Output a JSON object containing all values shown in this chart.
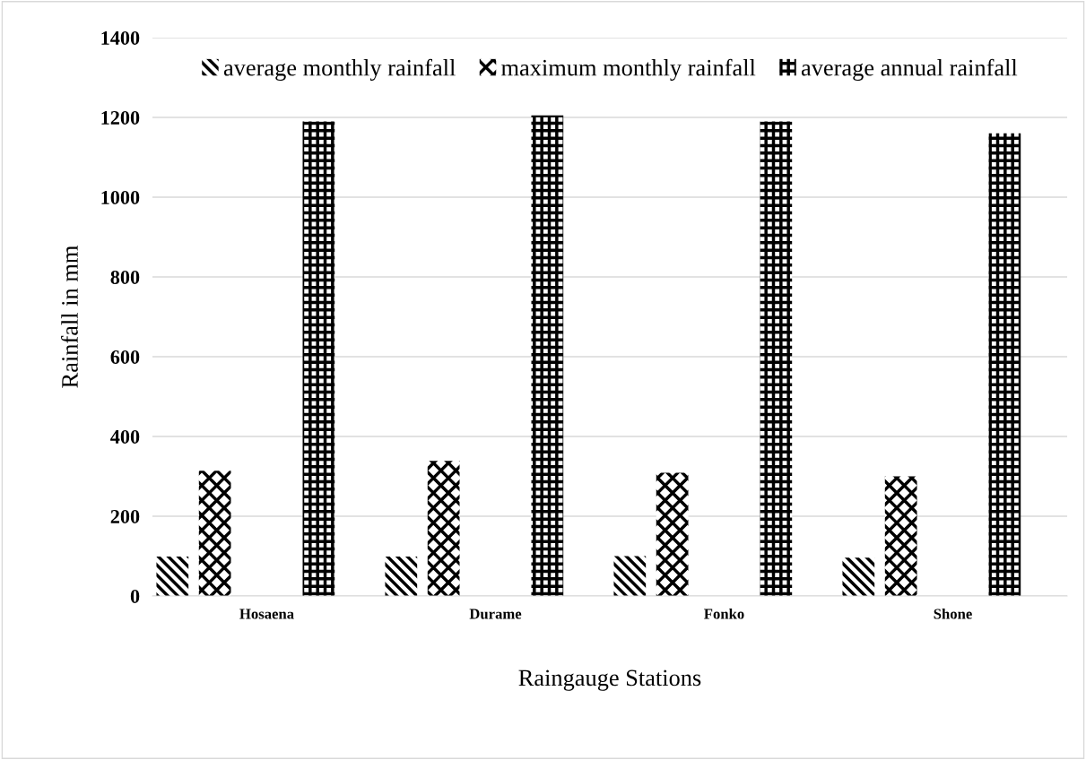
{
  "chart_data": {
    "type": "bar",
    "xlabel": "Raingauge Stations",
    "ylabel": "Rainfall in mm",
    "categories": [
      "Hosaena",
      "Durame",
      "Fonko",
      "Shone"
    ],
    "series": [
      {
        "name": "average monthly rainfall",
        "color": "#000000",
        "values": [
          99,
          99,
          100,
          96
        ]
      },
      {
        "name": "maximum monthly rainfall",
        "color": "#000000",
        "values": [
          314,
          339,
          309,
          300
        ]
      },
      {
        "name": "average annual rainfall",
        "color": "#000000",
        "values": [
          1190,
          1205,
          1190,
          1160
        ]
      }
    ],
    "ylim": [
      0,
      1400
    ],
    "yticks": [
      0,
      200,
      400,
      600,
      800,
      1000,
      1200,
      1400
    ],
    "grid": "y",
    "legend": "top"
  }
}
